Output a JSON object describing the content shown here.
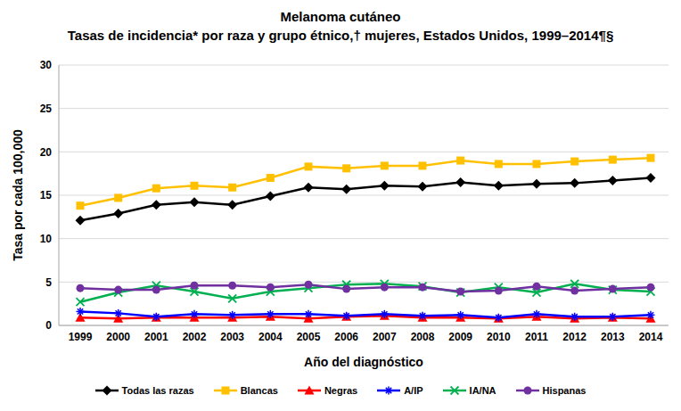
{
  "chart_data": {
    "type": "line",
    "title": "Melanoma cutáneo",
    "subtitle": "Tasas de incidencia* por raza y grupo étnico,† mujeres, Estados Unidos, 1999–2014¶§",
    "x_label": "Año del diagnóstico",
    "y_label": "Tasa por cada 100,000",
    "categories": [
      "1999",
      "2000",
      "2001",
      "2002",
      "2003",
      "2004",
      "2005",
      "2006",
      "2007",
      "2008",
      "2009",
      "2010",
      "2011",
      "2012",
      "2013",
      "2014"
    ],
    "ylim": [
      0,
      30
    ],
    "yticks": [
      0,
      5,
      10,
      15,
      20,
      25,
      30
    ],
    "grid": true,
    "legend": "bottom",
    "series": [
      {
        "name": "Todas las razas",
        "color": "#000000",
        "marker": "diamond",
        "values": [
          12.1,
          12.9,
          13.9,
          14.2,
          13.9,
          14.9,
          15.9,
          15.7,
          16.1,
          16.0,
          16.5,
          16.1,
          16.3,
          16.4,
          16.7,
          17.0
        ]
      },
      {
        "name": "Blancas",
        "color": "#FFC000",
        "marker": "square",
        "values": [
          13.8,
          14.7,
          15.8,
          16.1,
          15.9,
          17.0,
          18.3,
          18.1,
          18.4,
          18.4,
          19.0,
          18.6,
          18.6,
          18.9,
          19.1,
          19.3
        ]
      },
      {
        "name": "Negras",
        "color": "#FF0000",
        "marker": "triangle",
        "values": [
          0.9,
          0.8,
          0.9,
          0.9,
          0.9,
          1.0,
          0.8,
          1.0,
          1.1,
          0.9,
          0.9,
          0.8,
          1.0,
          0.8,
          0.9,
          0.8
        ]
      },
      {
        "name": "A/IP",
        "color": "#0000FF",
        "marker": "asterisk",
        "values": [
          1.6,
          1.4,
          1.0,
          1.3,
          1.2,
          1.3,
          1.3,
          1.1,
          1.3,
          1.1,
          1.2,
          0.9,
          1.3,
          1.0,
          1.0,
          1.2
        ]
      },
      {
        "name": "IA/NA",
        "color": "#00B050",
        "marker": "x",
        "values": [
          2.7,
          3.8,
          4.6,
          3.9,
          3.1,
          3.9,
          4.3,
          4.7,
          4.8,
          4.5,
          3.8,
          4.4,
          3.8,
          4.8,
          4.1,
          3.9
        ]
      },
      {
        "name": "Hispanas",
        "color": "#7030A0",
        "marker": "circle",
        "values": [
          4.3,
          4.1,
          4.1,
          4.6,
          4.6,
          4.4,
          4.7,
          4.2,
          4.4,
          4.4,
          3.9,
          4.0,
          4.5,
          4.0,
          4.2,
          4.4
        ]
      }
    ]
  }
}
